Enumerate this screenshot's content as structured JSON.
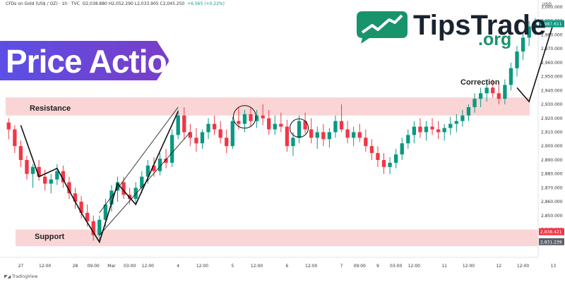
{
  "header": {
    "symbol": "CFDs on Gold (US$ / OZ) · 1h · TVC",
    "ohlc": "O2,038.880  H2,052.290  L2,033.905  C2,045.250",
    "change": "+6.565 (+0.22%)"
  },
  "brand": {
    "title": "Price Action",
    "logo_word": "TipsTrade",
    "logo_suffix": ".org"
  },
  "footer": {
    "text": "TradingView"
  },
  "colors": {
    "up": "#089981",
    "down": "#f23645",
    "zone": "#f9cbcb",
    "banner": "#6a3fd8",
    "logo": "#19936c"
  },
  "annotations": {
    "resistance": "Resistance",
    "support": "Support",
    "correction": "Correction",
    "price_tag_red": "2,838.421",
    "price_tag_grey": "2,831.239",
    "price_tag_green": "2,987.611",
    "currency": "USD"
  },
  "chart_data": {
    "type": "candlestick",
    "ylim": [
      2820,
      3000
    ],
    "y_ticks": [
      3000,
      2990,
      2980,
      2970,
      2960,
      2950,
      2940,
      2930,
      2920,
      2910,
      2900,
      2890,
      2880,
      2870,
      2860,
      2850,
      2840,
      2830
    ],
    "y_tick_labels": [
      "3,000.000",
      "2,990.000",
      "2,980.000",
      "2,970.000",
      "2,960.000",
      "2,950.000",
      "2,940.000",
      "2,930.000",
      "2,920.000",
      "2,910.000",
      "2,900.000",
      "2,890.000",
      "2,880.000",
      "2,870.000",
      "2,860.000",
      "2,850.000",
      "2,840.000",
      "2,830.000"
    ],
    "x_ticks": [
      {
        "i": 2,
        "label": "27"
      },
      {
        "i": 6,
        "label": "12:00"
      },
      {
        "i": 11,
        "label": "28"
      },
      {
        "i": 14,
        "label": "09:00"
      },
      {
        "i": 17,
        "label": "Mar"
      },
      {
        "i": 20,
        "label": "03:00"
      },
      {
        "i": 23,
        "label": "12:00"
      },
      {
        "i": 28,
        "label": "4"
      },
      {
        "i": 32,
        "label": "12:00"
      },
      {
        "i": 37,
        "label": "5"
      },
      {
        "i": 41,
        "label": "12:00"
      },
      {
        "i": 46,
        "label": "6"
      },
      {
        "i": 50,
        "label": "12:00"
      },
      {
        "i": 55,
        "label": "7"
      },
      {
        "i": 58,
        "label": "09:00"
      },
      {
        "i": 61,
        "label": "9"
      },
      {
        "i": 64,
        "label": "03:00"
      },
      {
        "i": 67,
        "label": "12:00"
      },
      {
        "i": 72,
        "label": "11"
      },
      {
        "i": 76,
        "label": "12:00"
      },
      {
        "i": 81,
        "label": "12"
      },
      {
        "i": 85,
        "label": "12:00"
      },
      {
        "i": 90,
        "label": "13"
      },
      {
        "i": 94,
        "label": "12:00"
      }
    ],
    "resistance_zone": [
      2922,
      2935
    ],
    "support_zone": [
      2828,
      2840
    ],
    "candles": [
      [
        2917,
        2920,
        2905,
        2912
      ],
      [
        2912,
        2915,
        2895,
        2900
      ],
      [
        2900,
        2904,
        2885,
        2890
      ],
      [
        2890,
        2893,
        2876,
        2880
      ],
      [
        2880,
        2887,
        2870,
        2885
      ],
      [
        2885,
        2890,
        2875,
        2878
      ],
      [
        2878,
        2883,
        2868,
        2873
      ],
      [
        2873,
        2880,
        2866,
        2876
      ],
      [
        2876,
        2887,
        2872,
        2882
      ],
      [
        2882,
        2886,
        2870,
        2874
      ],
      [
        2874,
        2878,
        2862,
        2866
      ],
      [
        2866,
        2870,
        2855,
        2860
      ],
      [
        2860,
        2864,
        2848,
        2852
      ],
      [
        2852,
        2858,
        2842,
        2846
      ],
      [
        2846,
        2850,
        2832,
        2836
      ],
      [
        2836,
        2850,
        2831,
        2847
      ],
      [
        2847,
        2862,
        2842,
        2858
      ],
      [
        2858,
        2872,
        2853,
        2868
      ],
      [
        2868,
        2878,
        2860,
        2874
      ],
      [
        2874,
        2878,
        2862,
        2865
      ],
      [
        2865,
        2870,
        2858,
        2862
      ],
      [
        2862,
        2874,
        2859,
        2870
      ],
      [
        2870,
        2882,
        2866,
        2878
      ],
      [
        2878,
        2890,
        2873,
        2886
      ],
      [
        2886,
        2892,
        2878,
        2882
      ],
      [
        2882,
        2895,
        2879,
        2891
      ],
      [
        2891,
        2898,
        2884,
        2888
      ],
      [
        2888,
        2912,
        2885,
        2908
      ],
      [
        2908,
        2926,
        2905,
        2922
      ],
      [
        2922,
        2928,
        2905,
        2910
      ],
      [
        2910,
        2916,
        2900,
        2906
      ],
      [
        2906,
        2913,
        2896,
        2902
      ],
      [
        2902,
        2912,
        2898,
        2910
      ],
      [
        2910,
        2920,
        2905,
        2916
      ],
      [
        2916,
        2922,
        2908,
        2912
      ],
      [
        2912,
        2918,
        2902,
        2906
      ],
      [
        2906,
        2912,
        2895,
        2900
      ],
      [
        2900,
        2921,
        2898,
        2918
      ],
      [
        2918,
        2928,
        2912,
        2916
      ],
      [
        2916,
        2926,
        2910,
        2923
      ],
      [
        2923,
        2928,
        2914,
        2918
      ],
      [
        2918,
        2926,
        2913,
        2922
      ],
      [
        2922,
        2930,
        2915,
        2920
      ],
      [
        2920,
        2926,
        2908,
        2912
      ],
      [
        2912,
        2922,
        2908,
        2916
      ],
      [
        2916,
        2924,
        2910,
        2914
      ],
      [
        2914,
        2919,
        2896,
        2900
      ],
      [
        2900,
        2910,
        2893,
        2906
      ],
      [
        2906,
        2922,
        2902,
        2918
      ],
      [
        2918,
        2924,
        2909,
        2912
      ],
      [
        2912,
        2920,
        2902,
        2906
      ],
      [
        2906,
        2914,
        2898,
        2910
      ],
      [
        2910,
        2916,
        2900,
        2905
      ],
      [
        2905,
        2913,
        2899,
        2910
      ],
      [
        2910,
        2922,
        2906,
        2918
      ],
      [
        2918,
        2930,
        2910,
        2912
      ],
      [
        2912,
        2918,
        2902,
        2906
      ],
      [
        2906,
        2914,
        2900,
        2910
      ],
      [
        2910,
        2916,
        2903,
        2906
      ],
      [
        2906,
        2912,
        2896,
        2900
      ],
      [
        2900,
        2905,
        2890,
        2895
      ],
      [
        2895,
        2900,
        2885,
        2890
      ],
      [
        2890,
        2895,
        2880,
        2885
      ],
      [
        2885,
        2892,
        2880,
        2888
      ],
      [
        2888,
        2898,
        2884,
        2894
      ],
      [
        2894,
        2906,
        2890,
        2902
      ],
      [
        2902,
        2912,
        2898,
        2908
      ],
      [
        2908,
        2918,
        2902,
        2914
      ],
      [
        2914,
        2920,
        2906,
        2910
      ],
      [
        2910,
        2918,
        2904,
        2914
      ],
      [
        2914,
        2920,
        2908,
        2912
      ],
      [
        2912,
        2918,
        2905,
        2910
      ],
      [
        2910,
        2916,
        2904,
        2913
      ],
      [
        2913,
        2921,
        2908,
        2916
      ],
      [
        2916,
        2923,
        2910,
        2918
      ],
      [
        2918,
        2926,
        2914,
        2922
      ],
      [
        2922,
        2930,
        2918,
        2928
      ],
      [
        2928,
        2938,
        2924,
        2934
      ],
      [
        2934,
        2942,
        2928,
        2938
      ],
      [
        2938,
        2946,
        2932,
        2942
      ],
      [
        2942,
        2948,
        2935,
        2938
      ],
      [
        2938,
        2944,
        2930,
        2934
      ],
      [
        2934,
        2948,
        2930,
        2944
      ],
      [
        2944,
        2960,
        2940,
        2956
      ],
      [
        2956,
        2972,
        2950,
        2968
      ],
      [
        2968,
        2982,
        2962,
        2978
      ],
      [
        2978,
        2990,
        2972,
        2986
      ],
      [
        2986,
        2992,
        2980,
        2988
      ]
    ]
  }
}
